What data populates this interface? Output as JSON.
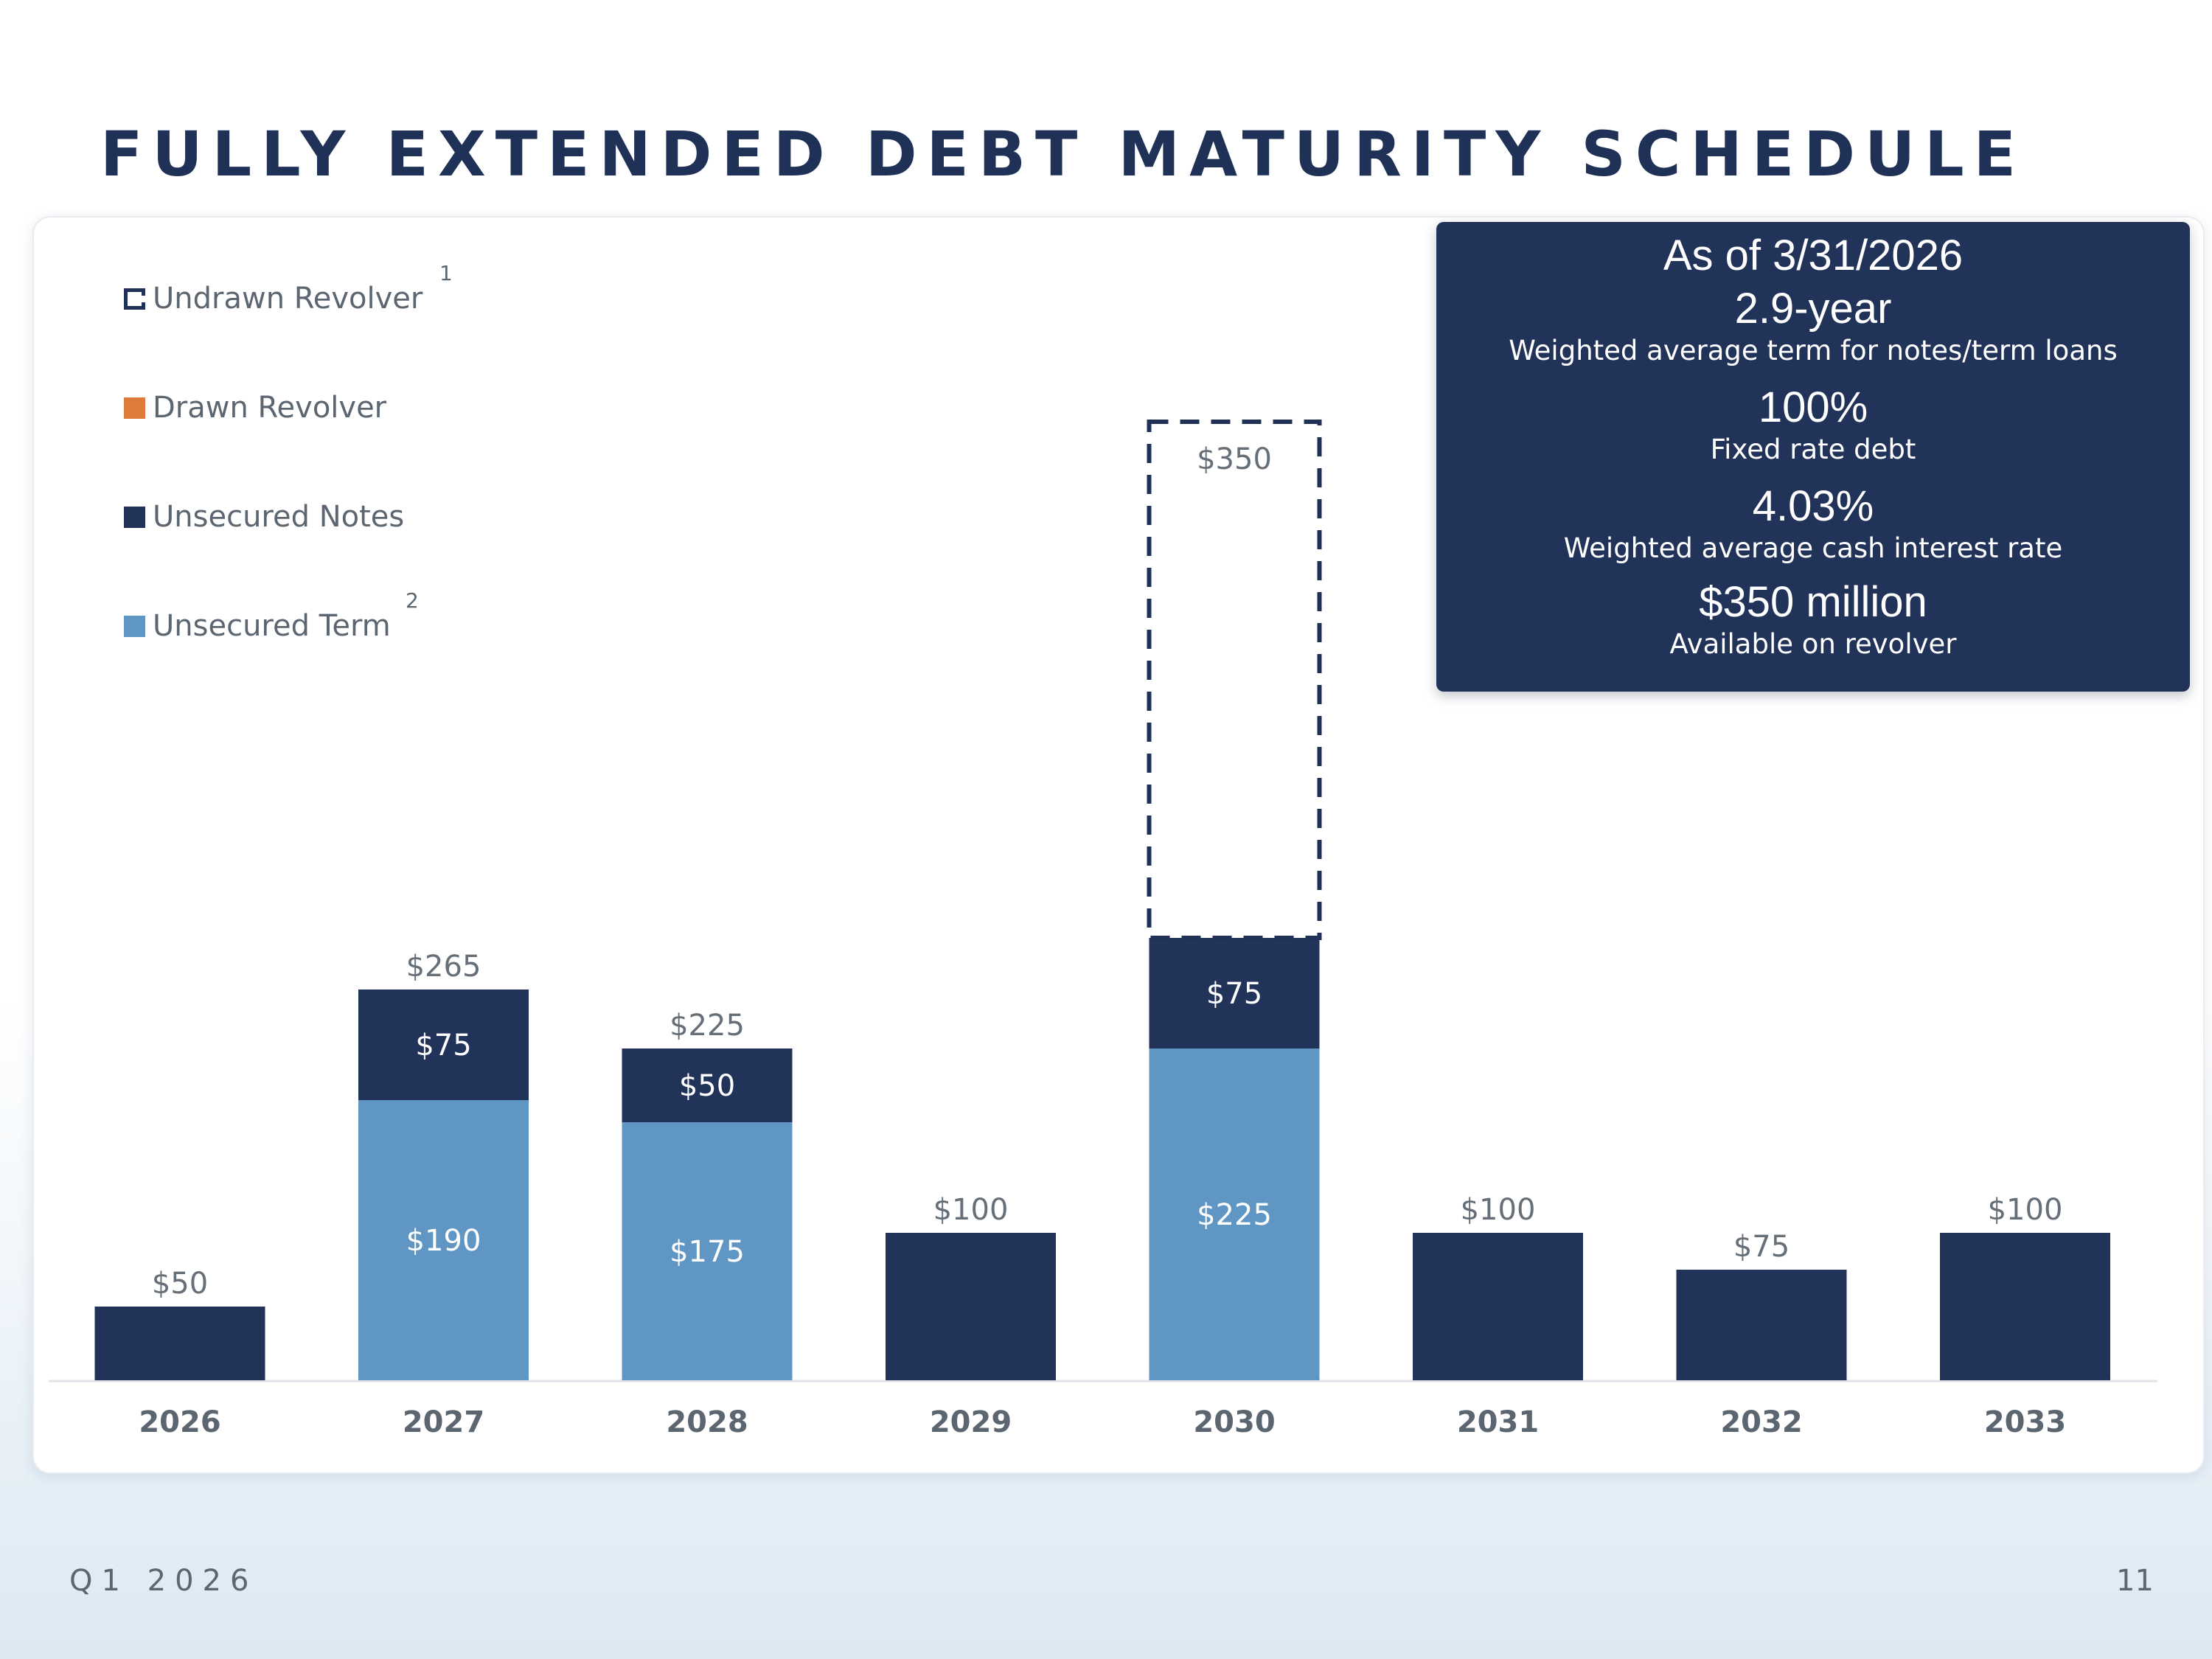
{
  "page": {
    "title": "FULLY EXTENDED DEBT MATURITY SCHEDULE",
    "footer_left": "Q1 2026",
    "page_number": "11"
  },
  "legend": [
    {
      "label": "Undrawn Revolver",
      "sup": "1",
      "style": "dashed-outline",
      "color": "#203158"
    },
    {
      "label": "Drawn Revolver",
      "sup": "",
      "style": "fill",
      "color": "#e07a3a"
    },
    {
      "label": "Unsecured Notes",
      "sup": "",
      "style": "fill",
      "color": "#22335a"
    },
    {
      "label": "Unsecured Term",
      "sup": "2",
      "style": "fill",
      "color": "#5f96c3"
    }
  ],
  "stats": {
    "as_of": "As of 3/31/2026",
    "term_value": "2.9-year",
    "term_label": "Weighted average term for notes/term loans",
    "fixed_value": "100%",
    "fixed_label": "Fixed rate debt",
    "rate_value": "4.03%",
    "rate_label": "Weighted average cash interest rate",
    "revolver_value": "$350 million",
    "revolver_label": "Available on revolver"
  },
  "colors": {
    "notes": "#22335a",
    "term": "#5f96c3",
    "drawn_revolver": "#e07a3a",
    "undrawn_outline": "#203158",
    "label_gray": "#666f78",
    "axis_gray": "#e0e3e8"
  },
  "chart_data": {
    "type": "bar",
    "stacked": true,
    "categories": [
      "2026",
      "2027",
      "2028",
      "2029",
      "2030",
      "2031",
      "2032",
      "2033"
    ],
    "series": [
      {
        "name": "Unsecured Term",
        "values": [
          0,
          190,
          175,
          0,
          225,
          0,
          0,
          0
        ]
      },
      {
        "name": "Unsecured Notes",
        "values": [
          50,
          75,
          50,
          100,
          75,
          100,
          75,
          100
        ]
      },
      {
        "name": "Drawn Revolver",
        "values": [
          0,
          0,
          0,
          0,
          0,
          0,
          0,
          0
        ]
      },
      {
        "name": "Undrawn Revolver",
        "values": [
          0,
          0,
          0,
          0,
          350,
          0,
          0,
          0
        ]
      }
    ],
    "segment_labels": {
      "Unsecured Term": [
        "",
        "$190",
        "$175",
        "",
        "$225",
        "",
        "",
        ""
      ],
      "Unsecured Notes": [
        "",
        "$75",
        "$50",
        "",
        "$75",
        "",
        "",
        ""
      ],
      "Undrawn Revolver": [
        "",
        "",
        "",
        "",
        "$350",
        "",
        "",
        ""
      ]
    },
    "total_labels": [
      "$50",
      "$265",
      "$225",
      "$100",
      "",
      "$100",
      "$75",
      "$100"
    ],
    "ylim": [
      0,
      650
    ],
    "grid": false,
    "legend_position": "top-left"
  }
}
